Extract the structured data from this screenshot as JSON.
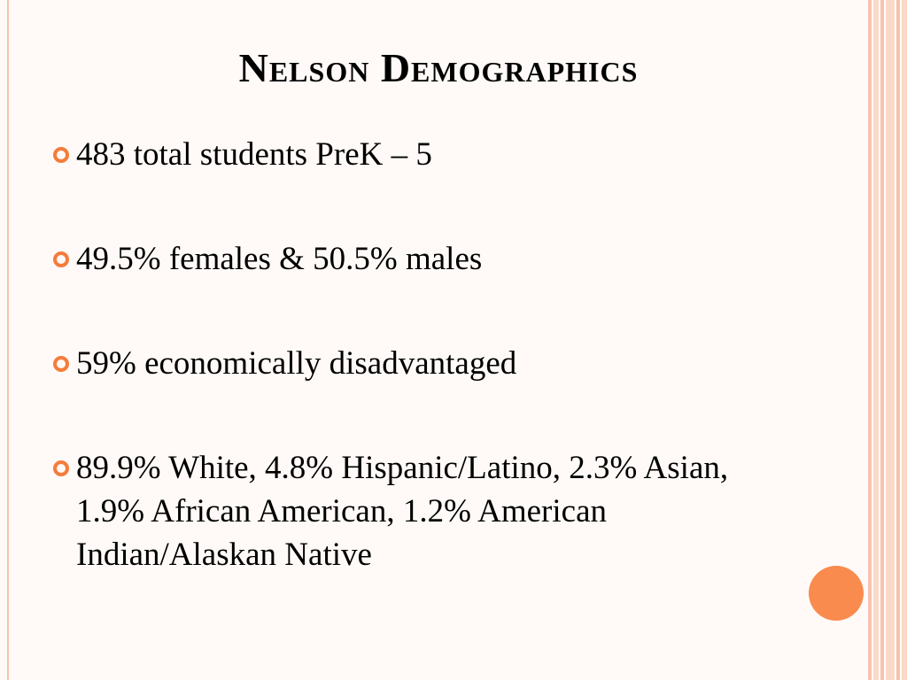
{
  "title": "Nelson Demographics",
  "bullets": [
    "483 total students PreK – 5",
    "49.5% females & 50.5% males",
    "59% economically disadvantaged",
    "89.9% White, 4.8% Hispanic/Latino, 2.3% Asian, 1.9% African American, 1.2% American Indian/Alaskan Native"
  ]
}
